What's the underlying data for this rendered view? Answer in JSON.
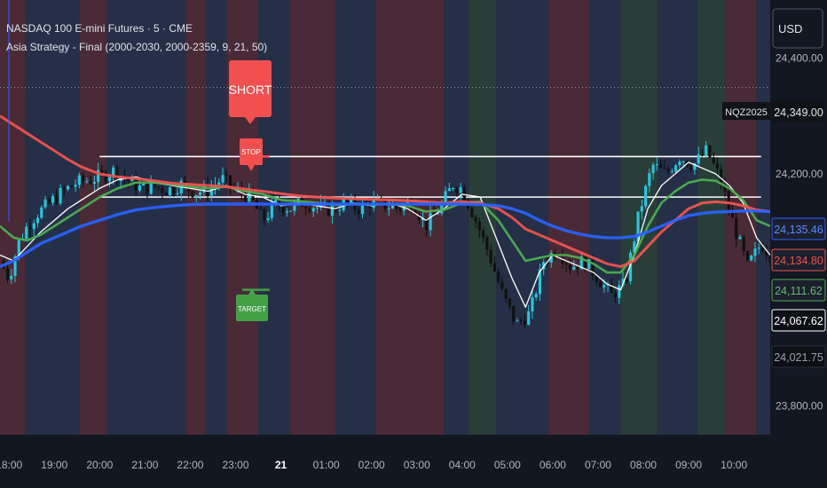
{
  "header": {
    "symbol_title": "NASDAQ 100 E-mini Futures · 5 · CME",
    "indicator_title": "Asia Strategy - Final (2000-2030, 2000-2359, 9, 21, 50)",
    "currency": "USD"
  },
  "colors": {
    "background": "#1b1f2e",
    "session_red": "#5a2f3a",
    "session_green": "#2f4a3c",
    "session_blue": "#2a3550",
    "candle": "#26c6da",
    "candle_down": "#111111",
    "ema_fast": "#ffffff",
    "ema_mid": "#4caf50",
    "ema_slow": "#ef5350",
    "sma": "#2962ff",
    "short_label": "#f05050",
    "target_label": "#43a047"
  },
  "labels": {
    "short": "SHORT",
    "stop": "STOP",
    "target": "TARGET",
    "contract": "NQZ2025"
  },
  "chart_data": {
    "type": "line",
    "y_axis": {
      "ylim": [
        23750,
        24500
      ],
      "ticks": [
        "24,400.00",
        "24,200.00",
        "23,800.00"
      ],
      "tick_values": [
        24400,
        24200,
        23800
      ]
    },
    "x_axis": {
      "ticks": [
        "18:00",
        "19:00",
        "20:00",
        "21:00",
        "22:00",
        "23:00",
        "21",
        "01:00",
        "02:00",
        "03:00",
        "04:00",
        "05:00",
        "06:00",
        "07:00",
        "08:00",
        "09:00",
        "10:00"
      ],
      "tick_hours": [
        18,
        19,
        20,
        21,
        22,
        23,
        24,
        25,
        26,
        27,
        28,
        29,
        30,
        31,
        32,
        33,
        34
      ],
      "range_hours": [
        17.8,
        34.8
      ]
    },
    "price_labels": [
      {
        "text": "24,349.00",
        "value": 24349,
        "style": "dark"
      },
      {
        "text": "24,135.46",
        "value": 24135.46,
        "style": "blue"
      },
      {
        "text": "24,134.80",
        "value": 24134.8,
        "style": "red"
      },
      {
        "text": "24,111.62",
        "value": 24111.62,
        "style": "green"
      },
      {
        "text": "24,067.62",
        "value": 24067.62,
        "style": "white"
      },
      {
        "text": "24,021.75",
        "value": 24021.75,
        "style": "black"
      }
    ],
    "levels": [
      {
        "name": "range-high",
        "value": 24230,
        "from_hour": 20.0,
        "to_hour": 34.6
      },
      {
        "name": "range-low",
        "value": 24160,
        "from_hour": 20.0,
        "to_hour": 34.6
      },
      {
        "name": "stop-line",
        "value": 24230,
        "from_hour": 23.15,
        "to_hour": 23.75
      },
      {
        "name": "target-line",
        "value": 24000,
        "from_hour": 23.15,
        "to_hour": 23.75
      }
    ],
    "resistance_line": {
      "value": 24349
    },
    "series": [
      {
        "key": "ema_fast",
        "x": [
          17.8,
          18.1,
          18.4,
          18.7,
          19.0,
          19.3,
          19.6,
          20.0,
          20.4,
          20.8,
          21.2,
          21.6,
          22.0,
          22.4,
          22.8,
          23.2,
          23.6,
          24.0,
          24.4,
          24.8,
          25.2,
          25.6,
          26.0,
          26.4,
          26.8,
          27.2,
          27.6,
          28.0,
          28.4,
          28.8,
          29.1,
          29.4,
          29.7,
          30.0,
          30.3,
          30.6,
          30.9,
          31.2,
          31.5,
          31.8,
          32.1,
          32.4,
          32.7,
          33.0,
          33.3,
          33.6,
          33.9,
          34.2,
          34.5,
          34.8
        ],
        "values": [
          24060,
          24050,
          24075,
          24100,
          24120,
          24140,
          24155,
          24175,
          24190,
          24195,
          24185,
          24180,
          24175,
          24170,
          24180,
          24165,
          24160,
          24145,
          24150,
          24145,
          24140,
          24150,
          24145,
          24150,
          24140,
          24120,
          24140,
          24165,
          24160,
          24080,
          24020,
          23970,
          24030,
          24060,
          24050,
          24040,
          24030,
          24010,
          24000,
          24060,
          24140,
          24180,
          24200,
          24220,
          24210,
          24200,
          24180,
          24150,
          24090,
          24060
        ]
      },
      {
        "key": "ema_mid",
        "x": [
          17.8,
          18.1,
          18.4,
          18.7,
          19.0,
          19.3,
          19.6,
          20.0,
          20.4,
          20.8,
          21.2,
          21.6,
          22.0,
          22.4,
          22.8,
          23.2,
          23.6,
          24.0,
          24.4,
          24.8,
          25.2,
          25.6,
          26.0,
          26.4,
          26.8,
          27.2,
          27.6,
          28.0,
          28.4,
          28.8,
          29.1,
          29.4,
          29.7,
          30.0,
          30.3,
          30.6,
          30.9,
          31.2,
          31.5,
          31.8,
          32.1,
          32.4,
          32.7,
          33.0,
          33.3,
          33.6,
          33.9,
          34.2,
          34.5,
          34.8
        ],
        "values": [
          24110,
          24090,
          24085,
          24095,
          24110,
          24125,
          24140,
          24160,
          24175,
          24185,
          24185,
          24182,
          24178,
          24175,
          24178,
          24170,
          24165,
          24155,
          24153,
          24150,
          24146,
          24148,
          24147,
          24148,
          24145,
          24135,
          24138,
          24150,
          24152,
          24120,
          24085,
          24050,
          24055,
          24060,
          24060,
          24055,
          24045,
          24030,
          24030,
          24060,
          24110,
          24150,
          24170,
          24185,
          24190,
          24188,
          24175,
          24155,
          24120,
          24110
        ]
      },
      {
        "key": "ema_slow",
        "x": [
          17.8,
          18.1,
          18.4,
          18.7,
          19.0,
          19.3,
          19.6,
          20.0,
          20.4,
          20.8,
          21.2,
          21.6,
          22.0,
          22.4,
          22.8,
          23.2,
          23.6,
          24.0,
          24.4,
          24.8,
          25.2,
          25.6,
          26.0,
          26.4,
          26.8,
          27.2,
          27.6,
          28.0,
          28.4,
          28.8,
          29.1,
          29.4,
          29.7,
          30.0,
          30.3,
          30.6,
          30.9,
          31.2,
          31.5,
          31.8,
          32.1,
          32.4,
          32.7,
          33.0,
          33.3,
          33.6,
          33.9,
          34.2,
          34.5,
          34.8
        ],
        "values": [
          24300,
          24285,
          24270,
          24255,
          24240,
          24225,
          24212,
          24200,
          24195,
          24192,
          24188,
          24184,
          24182,
          24180,
          24178,
          24174,
          24170,
          24166,
          24162,
          24160,
          24158,
          24157,
          24156,
          24155,
          24154,
          24152,
          24150,
          24152,
          24150,
          24140,
          24125,
          24105,
          24095,
          24085,
          24075,
          24065,
          24055,
          24045,
          24040,
          24050,
          24075,
          24100,
          24120,
          24140,
          24150,
          24152,
          24150,
          24145,
          24138,
          24135
        ]
      },
      {
        "key": "sma",
        "x": [
          17.8,
          18.1,
          18.4,
          18.7,
          19.0,
          19.3,
          19.6,
          20.0,
          20.4,
          20.8,
          21.2,
          21.6,
          22.0,
          22.4,
          22.8,
          23.2,
          23.6,
          24.0,
          24.4,
          24.8,
          25.2,
          25.6,
          26.0,
          26.4,
          26.8,
          27.2,
          27.6,
          28.0,
          28.4,
          28.8,
          29.1,
          29.4,
          29.7,
          30.0,
          30.3,
          30.6,
          30.9,
          31.2,
          31.5,
          31.8,
          32.1,
          32.4,
          32.7,
          33.0,
          33.3,
          33.6,
          33.9,
          34.2,
          34.5,
          34.8
        ],
        "values": [
          24040,
          24050,
          24065,
          24080,
          24090,
          24100,
          24110,
          24120,
          24130,
          24138,
          24142,
          24145,
          24147,
          24148,
          24148,
          24148,
          24148,
          24148,
          24148,
          24148,
          24148,
          24148,
          24148,
          24148,
          24148,
          24148,
          24148,
          24148,
          24147,
          24145,
          24140,
          24132,
          24120,
          24110,
          24102,
          24096,
          24092,
          24090,
          24090,
          24092,
          24100,
          24110,
          24120,
          24128,
          24132,
          24134,
          24135,
          24136,
          24136,
          24135
        ]
      }
    ],
    "price_path": {
      "x": [
        17.8,
        18.0,
        18.2,
        18.4,
        18.6,
        18.9,
        19.2,
        19.5,
        19.8,
        20.0,
        20.3,
        20.6,
        20.9,
        21.2,
        21.5,
        21.8,
        22.1,
        22.4,
        22.7,
        23.0,
        23.3,
        23.6,
        23.9,
        24.2,
        24.5,
        24.8,
        25.1,
        25.4,
        25.7,
        26.0,
        26.3,
        26.6,
        26.9,
        27.2,
        27.5,
        27.8,
        28.0,
        28.3,
        28.6,
        28.9,
        29.2,
        29.5,
        29.8,
        30.1,
        30.4,
        30.7,
        31.0,
        31.3,
        31.6,
        31.9,
        32.2,
        32.5,
        32.8,
        33.1,
        33.4,
        33.7,
        34.0,
        34.3,
        34.6,
        34.8
      ],
      "values": [
        24050,
        24020,
        24080,
        24110,
        24130,
        24150,
        24170,
        24185,
        24190,
        24195,
        24205,
        24190,
        24175,
        24178,
        24172,
        24182,
        24168,
        24172,
        24192,
        24170,
        24162,
        24120,
        24148,
        24140,
        24152,
        24142,
        24138,
        24150,
        24140,
        24152,
        24146,
        24140,
        24152,
        24110,
        24140,
        24182,
        24175,
        24120,
        24060,
        23990,
        23940,
        23960,
        24050,
        24070,
        24040,
        24050,
        24020,
        23990,
        24010,
        24130,
        24215,
        24200,
        24230,
        24215,
        24240,
        24190,
        24110,
        24040,
        24080,
        24060
      ]
    },
    "session_bands": [
      {
        "from": 17.8,
        "to": 18.35,
        "color": "session_red"
      },
      {
        "from": 18.35,
        "to": 19.55,
        "color": "session_blue"
      },
      {
        "from": 19.55,
        "to": 20.15,
        "color": "session_red"
      },
      {
        "from": 20.15,
        "to": 21.9,
        "color": "session_blue"
      },
      {
        "from": 21.9,
        "to": 22.35,
        "color": "session_red"
      },
      {
        "from": 22.35,
        "to": 22.8,
        "color": "session_blue"
      },
      {
        "from": 22.8,
        "to": 23.5,
        "color": "session_red"
      },
      {
        "from": 23.5,
        "to": 24.2,
        "color": "session_blue"
      },
      {
        "from": 24.2,
        "to": 25.2,
        "color": "session_red"
      },
      {
        "from": 25.2,
        "to": 26.1,
        "color": "session_blue"
      },
      {
        "from": 26.1,
        "to": 27.6,
        "color": "session_red"
      },
      {
        "from": 27.6,
        "to": 28.15,
        "color": "session_blue"
      },
      {
        "from": 28.15,
        "to": 28.75,
        "color": "session_green"
      },
      {
        "from": 28.75,
        "to": 29.9,
        "color": "session_blue"
      },
      {
        "from": 29.9,
        "to": 30.8,
        "color": "session_red"
      },
      {
        "from": 30.8,
        "to": 31.5,
        "color": "session_blue"
      },
      {
        "from": 31.5,
        "to": 32.3,
        "color": "session_green"
      },
      {
        "from": 32.3,
        "to": 33.2,
        "color": "session_blue"
      },
      {
        "from": 33.2,
        "to": 33.8,
        "color": "session_green"
      },
      {
        "from": 33.8,
        "to": 34.5,
        "color": "session_red"
      },
      {
        "from": 34.5,
        "to": 34.8,
        "color": "session_blue"
      }
    ]
  }
}
